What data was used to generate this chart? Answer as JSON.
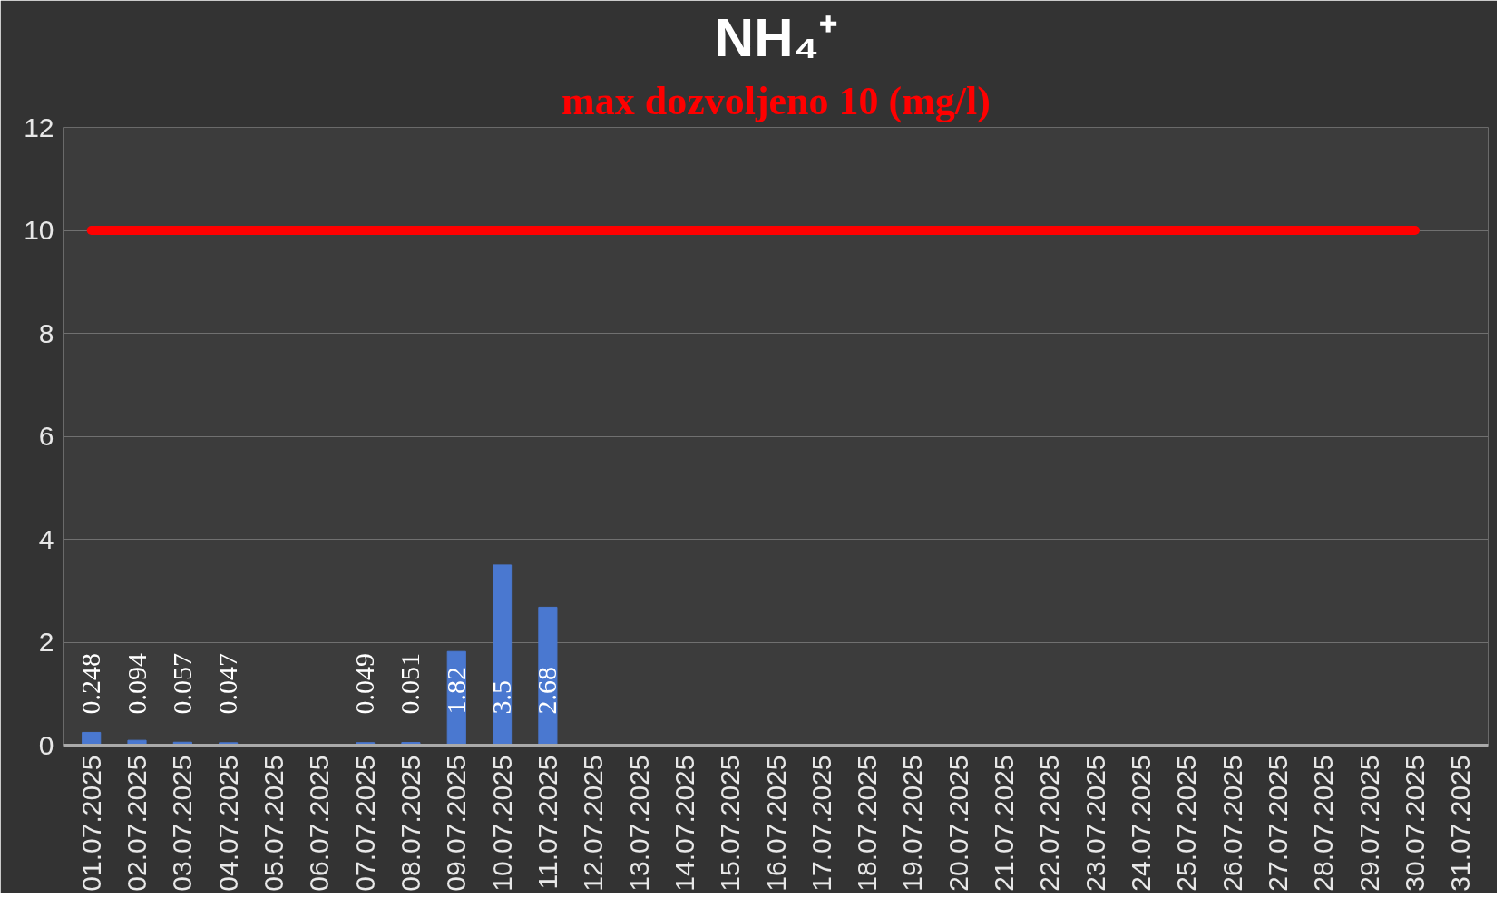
{
  "chart_data": {
    "type": "bar",
    "title": "NH₄⁺",
    "subtitle": "max dozvoljeno 10 (mg/l)",
    "categories": [
      "01.07.2025",
      "02.07.2025",
      "03.07.2025",
      "04.07.2025",
      "05.07.2025",
      "06.07.2025",
      "07.07.2025",
      "08.07.2025",
      "09.07.2025",
      "10.07.2025",
      "11.07.2025",
      "12.07.2025",
      "13.07.2025",
      "14.07.2025",
      "15.07.2025",
      "16.07.2025",
      "17.07.2025",
      "18.07.2025",
      "19.07.2025",
      "20.07.2025",
      "21.07.2025",
      "22.07.2025",
      "23.07.2025",
      "24.07.2025",
      "25.07.2025",
      "26.07.2025",
      "27.07.2025",
      "28.07.2025",
      "29.07.2025",
      "30.07.2025",
      "31.07.2025"
    ],
    "series": [
      {
        "color": "#4a78d0",
        "values": [
          0.248,
          0.094,
          0.057,
          0.047,
          null,
          null,
          0.049,
          0.051,
          1.82,
          3.5,
          2.68,
          null,
          null,
          null,
          null,
          null,
          null,
          null,
          null,
          null,
          null,
          null,
          null,
          null,
          null,
          null,
          null,
          null,
          null,
          null,
          null
        ],
        "value_labels": [
          "0.248",
          "0.094",
          "0.057",
          "0.047",
          null,
          null,
          "0.049",
          "0.051",
          "1.82",
          "3.5",
          "2.68",
          null,
          null,
          null,
          null,
          null,
          null,
          null,
          null,
          null,
          null,
          null,
          null,
          null,
          null,
          null,
          null,
          null,
          null,
          null,
          null
        ]
      },
      {
        "type": "line",
        "color": "#ff0000",
        "values": [
          10,
          10,
          10,
          10,
          10,
          10,
          10,
          10,
          10,
          10,
          10,
          10,
          10,
          10,
          10,
          10,
          10,
          10,
          10,
          10,
          10,
          10,
          10,
          10,
          10,
          10,
          10,
          10,
          10,
          10,
          null
        ]
      }
    ],
    "ylim": [
      0,
      12
    ],
    "yticks": [
      0,
      2,
      4,
      6,
      8,
      10,
      12
    ],
    "grid": "y"
  }
}
